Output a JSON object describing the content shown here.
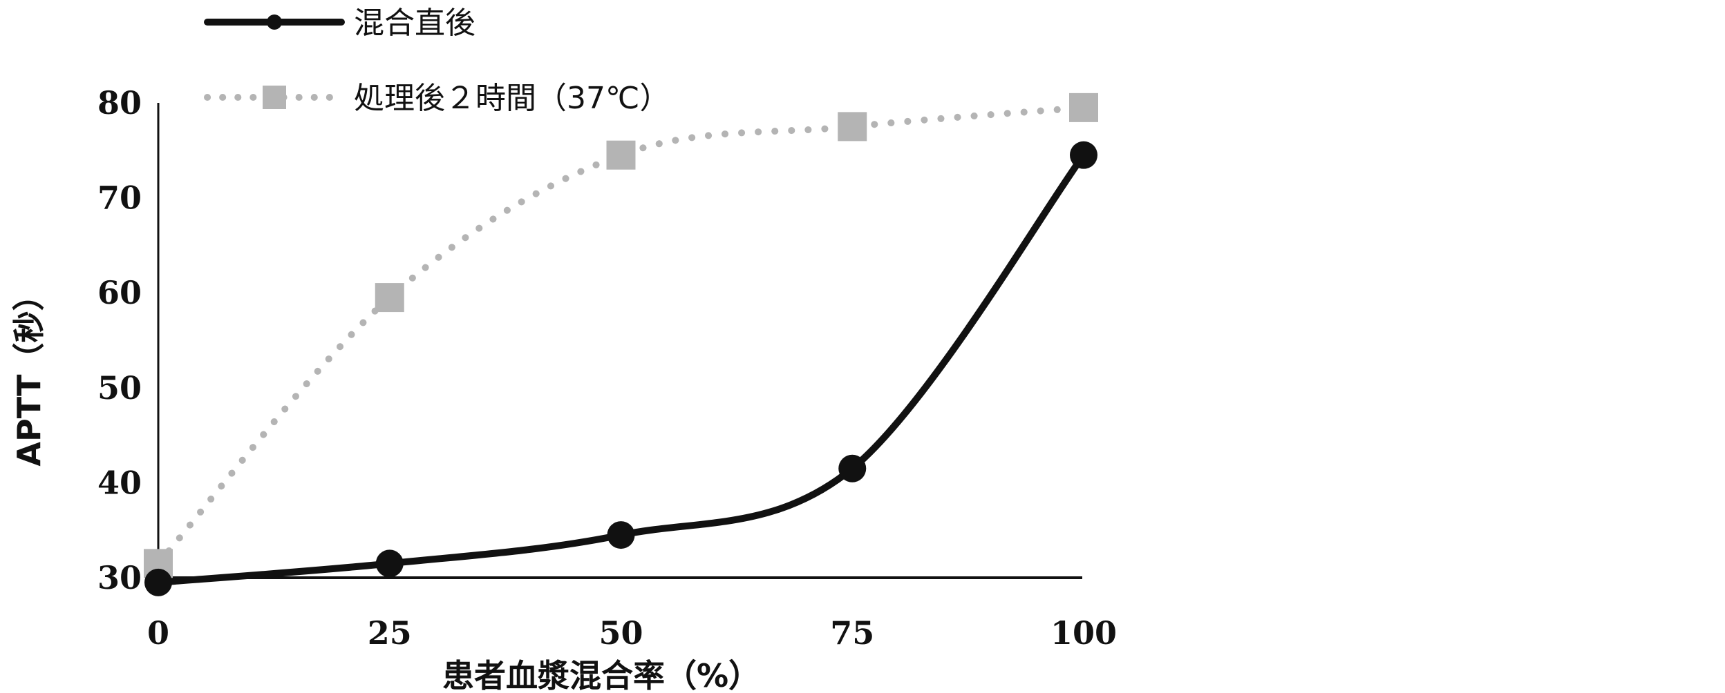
{
  "chart_data": {
    "type": "line",
    "title": "",
    "xlabel": "患者血漿混合率（%）",
    "ylabel": "APTT（秒）",
    "x": [
      0,
      25,
      50,
      75,
      100
    ],
    "x_ticks": [
      "0",
      "25",
      "50",
      "75",
      "100"
    ],
    "y_ticks": [
      "30",
      "40",
      "50",
      "60",
      "70",
      "80"
    ],
    "xlim": [
      0,
      100
    ],
    "ylim": [
      30,
      80
    ],
    "grid": false,
    "legend_position": "top-left",
    "series": [
      {
        "name": "混合直後",
        "values": [
          29.5,
          31.5,
          34.5,
          41.5,
          74.5
        ],
        "color": "#111111",
        "style": "solid",
        "marker": "circle"
      },
      {
        "name": "処理後２時間（37℃）",
        "values": [
          31.5,
          59.5,
          74.5,
          77.5,
          79.5
        ],
        "color": "#b4b4b4",
        "style": "dotted",
        "marker": "square"
      }
    ]
  }
}
